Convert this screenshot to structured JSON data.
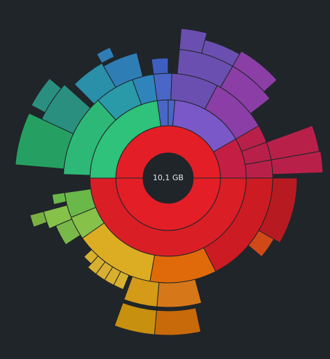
{
  "center_label": "10,1 GB"
}
